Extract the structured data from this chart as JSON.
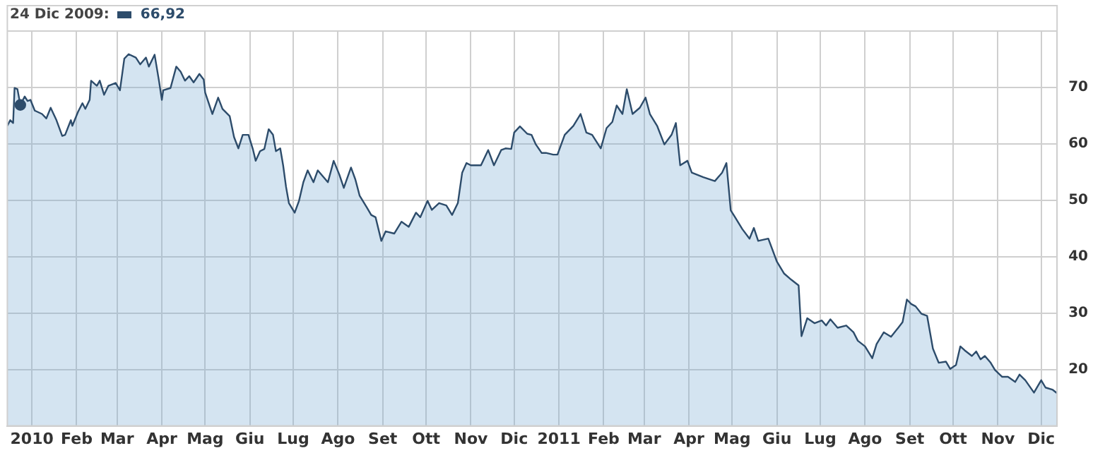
{
  "chart_data": {
    "type": "area",
    "x": [
      "2009-12-15",
      "2009-12-17",
      "2009-12-19",
      "2009-12-20",
      "2009-12-22",
      "2009-12-24",
      "2009-12-27",
      "2009-12-29",
      "2009-12-31",
      "2010-01-03",
      "2010-01-08",
      "2010-01-11",
      "2010-01-14",
      "2010-01-18",
      "2010-01-22",
      "2010-01-24",
      "2010-01-28",
      "2010-01-29",
      "2010-02-02",
      "2010-02-05",
      "2010-02-07",
      "2010-02-10",
      "2010-02-11",
      "2010-02-15",
      "2010-02-17",
      "2010-02-20",
      "2010-02-23",
      "2010-02-28",
      "2010-03-03",
      "2010-03-06",
      "2010-03-09",
      "2010-03-14",
      "2010-03-17",
      "2010-03-21",
      "2010-03-23",
      "2010-03-27",
      "2010-03-30",
      "2010-04-01",
      "2010-04-02",
      "2010-04-07",
      "2010-04-11",
      "2010-04-14",
      "2010-04-17",
      "2010-04-20",
      "2010-04-23",
      "2010-04-27",
      "2010-04-30",
      "2010-05-01",
      "2010-05-06",
      "2010-05-10",
      "2010-05-13",
      "2010-05-18",
      "2010-05-21",
      "2010-05-24",
      "2010-05-27",
      "2010-05-31",
      "2010-06-03",
      "2010-06-05",
      "2010-06-08",
      "2010-06-11",
      "2010-06-14",
      "2010-06-17",
      "2010-06-19",
      "2010-06-22",
      "2010-06-24",
      "2010-06-26",
      "2010-06-28",
      "2010-07-02",
      "2010-07-05",
      "2010-07-08",
      "2010-07-11",
      "2010-07-15",
      "2010-07-18",
      "2010-07-25",
      "2010-07-29",
      "2010-08-02",
      "2010-08-05",
      "2010-08-10",
      "2010-08-13",
      "2010-08-16",
      "2010-08-21",
      "2010-08-24",
      "2010-08-27",
      "2010-08-31",
      "2010-09-03",
      "2010-09-09",
      "2010-09-14",
      "2010-09-19",
      "2010-09-24",
      "2010-09-27",
      "2010-10-02",
      "2010-10-05",
      "2010-10-10",
      "2010-10-15",
      "2010-10-19",
      "2010-10-23",
      "2010-10-26",
      "2010-10-29",
      "2010-11-01",
      "2010-11-08",
      "2010-11-13",
      "2010-11-17",
      "2010-11-22",
      "2010-11-25",
      "2010-11-29",
      "2010-12-01",
      "2010-12-05",
      "2010-12-10",
      "2010-12-13",
      "2010-12-16",
      "2010-12-20",
      "2010-12-23",
      "2010-12-28",
      "2010-12-31",
      "2011-01-05",
      "2011-01-11",
      "2011-01-16",
      "2011-01-20",
      "2011-01-24",
      "2011-01-30",
      "2011-02-03",
      "2011-02-07",
      "2011-02-10",
      "2011-02-14",
      "2011-02-17",
      "2011-02-21",
      "2011-02-26",
      "2011-03-02",
      "2011-03-05",
      "2011-03-10",
      "2011-03-15",
      "2011-03-20",
      "2011-03-23",
      "2011-03-26",
      "2011-03-31",
      "2011-04-03",
      "2011-04-11",
      "2011-04-19",
      "2011-04-24",
      "2011-04-27",
      "2011-04-30",
      "2011-05-03",
      "2011-05-08",
      "2011-05-13",
      "2011-05-16",
      "2011-05-19",
      "2011-05-26",
      "2011-06-01",
      "2011-06-06",
      "2011-06-11",
      "2011-06-16",
      "2011-06-18",
      "2011-06-22",
      "2011-06-27",
      "2011-07-02",
      "2011-07-05",
      "2011-07-08",
      "2011-07-13",
      "2011-07-19",
      "2011-07-24",
      "2011-07-27",
      "2011-08-01",
      "2011-08-06",
      "2011-08-09",
      "2011-08-14",
      "2011-08-19",
      "2011-08-24",
      "2011-08-27",
      "2011-08-30",
      "2011-09-02",
      "2011-09-05",
      "2011-09-09",
      "2011-09-13",
      "2011-09-17",
      "2011-09-21",
      "2011-09-26",
      "2011-09-29",
      "2011-10-03",
      "2011-10-06",
      "2011-10-09",
      "2011-10-14",
      "2011-10-17",
      "2011-10-20",
      "2011-10-23",
      "2011-10-27",
      "2011-10-30",
      "2011-11-04",
      "2011-11-08",
      "2011-11-13",
      "2011-11-16",
      "2011-11-20",
      "2011-11-26",
      "2011-12-01",
      "2011-12-04",
      "2011-12-09",
      "2011-12-12"
    ],
    "series": [
      {
        "type": "scatter",
        "color": "#2d4c6b",
        "x": [
          "2009-12-24"
        ],
        "values": [
          66.9
        ],
        "marker": "circle"
      },
      {
        "color": "#2d4c6b",
        "values": [
          63.2,
          64.2,
          63.7,
          69.9,
          69.7,
          66.9,
          68.4,
          67.6,
          67.8,
          65.9,
          65.3,
          64.5,
          66.4,
          64.2,
          61.4,
          61.6,
          64.2,
          63.2,
          65.7,
          67.2,
          66.2,
          67.8,
          71.2,
          70.3,
          71.2,
          68.7,
          70.3,
          70.8,
          69.5,
          75.1,
          75.9,
          75.3,
          74.1,
          75.3,
          73.7,
          75.8,
          71.2,
          67.8,
          69.5,
          69.9,
          73.7,
          72.8,
          71.2,
          72,
          70.9,
          72.4,
          71.4,
          69.1,
          65.3,
          68.2,
          66.2,
          64.9,
          61.2,
          59.2,
          61.6,
          61.6,
          59.1,
          57,
          58.7,
          59.1,
          62.6,
          61.6,
          58.7,
          59.2,
          56.2,
          52.4,
          49.5,
          47.8,
          49.9,
          53.2,
          55.3,
          53.2,
          55.3,
          53.2,
          57,
          54.5,
          52.2,
          55.8,
          53.7,
          50.8,
          48.7,
          47.4,
          47,
          42.8,
          44.5,
          44.1,
          46.2,
          45.3,
          47.8,
          47,
          49.9,
          48.3,
          49.5,
          49.1,
          47.4,
          49.5,
          54.9,
          56.6,
          56.2,
          56.2,
          58.9,
          56.2,
          58.9,
          59.2,
          59.1,
          62,
          63.1,
          61.8,
          61.6,
          59.9,
          58.4,
          58.4,
          58.1,
          58.1,
          61.6,
          63.2,
          65.3,
          62,
          61.6,
          59.2,
          62.8,
          63.9,
          66.8,
          65.3,
          69.7,
          65.3,
          66.4,
          68.2,
          65.3,
          63.2,
          59.9,
          61.6,
          63.7,
          56.2,
          57,
          54.9,
          54.1,
          53.4,
          54.9,
          56.6,
          48.2,
          47,
          44.9,
          43.2,
          45.1,
          42.8,
          43.2,
          39.1,
          37,
          35.9,
          34.9,
          25.9,
          29.1,
          28.2,
          28.7,
          27.8,
          28.9,
          27.4,
          27.8,
          26.6,
          25.1,
          24.1,
          22,
          24.5,
          26.6,
          25.8,
          27.4,
          28.4,
          32.4,
          31.6,
          31.2,
          29.9,
          29.5,
          23.7,
          21.2,
          21.4,
          20.1,
          20.8,
          24.1,
          23.4,
          22.4,
          23.2,
          21.8,
          22.4,
          21.2,
          19.9,
          18.7,
          18.7,
          17.8,
          19.1,
          18.1,
          15.9,
          18.1,
          16.8,
          16.4,
          15.8
        ]
      }
    ],
    "xlim": [
      "2009-12-15",
      "2011-12-12"
    ],
    "xticks": [
      {
        "value": "2010-01-01",
        "label": "2010"
      },
      {
        "value": "2010-02-01",
        "label": "Feb"
      },
      {
        "value": "2010-03-01",
        "label": "Mar"
      },
      {
        "value": "2010-04-01",
        "label": "Apr"
      },
      {
        "value": "2010-05-01",
        "label": "Mag"
      },
      {
        "value": "2010-06-01",
        "label": "Giu"
      },
      {
        "value": "2010-07-01",
        "label": "Lug"
      },
      {
        "value": "2010-08-01",
        "label": "Ago"
      },
      {
        "value": "2010-09-01",
        "label": "Set"
      },
      {
        "value": "2010-10-01",
        "label": "Ott"
      },
      {
        "value": "2010-11-01",
        "label": "Nov"
      },
      {
        "value": "2010-12-01",
        "label": "Dic"
      },
      {
        "value": "2011-01-01",
        "label": "2011"
      },
      {
        "value": "2011-02-01",
        "label": "Feb"
      },
      {
        "value": "2011-03-01",
        "label": "Mar"
      },
      {
        "value": "2011-04-01",
        "label": "Apr"
      },
      {
        "value": "2011-05-01",
        "label": "Mag"
      },
      {
        "value": "2011-06-01",
        "label": "Giu"
      },
      {
        "value": "2011-07-01",
        "label": "Lug"
      },
      {
        "value": "2011-08-01",
        "label": "Ago"
      },
      {
        "value": "2011-09-01",
        "label": "Set"
      },
      {
        "value": "2011-10-01",
        "label": "Ott"
      },
      {
        "value": "2011-11-01",
        "label": "Nov"
      },
      {
        "value": "2011-12-01",
        "label": "Dic"
      }
    ],
    "ylim": [
      10,
      80
    ],
    "yticks": [
      {
        "value": 10,
        "label": null
      },
      20,
      30,
      40,
      50,
      60,
      70,
      {
        "value": 80,
        "label": null
      }
    ],
    "grid": true,
    "legend": false,
    "annotations": [
      "24 Dic 2009:",
      "66,92"
    ]
  }
}
